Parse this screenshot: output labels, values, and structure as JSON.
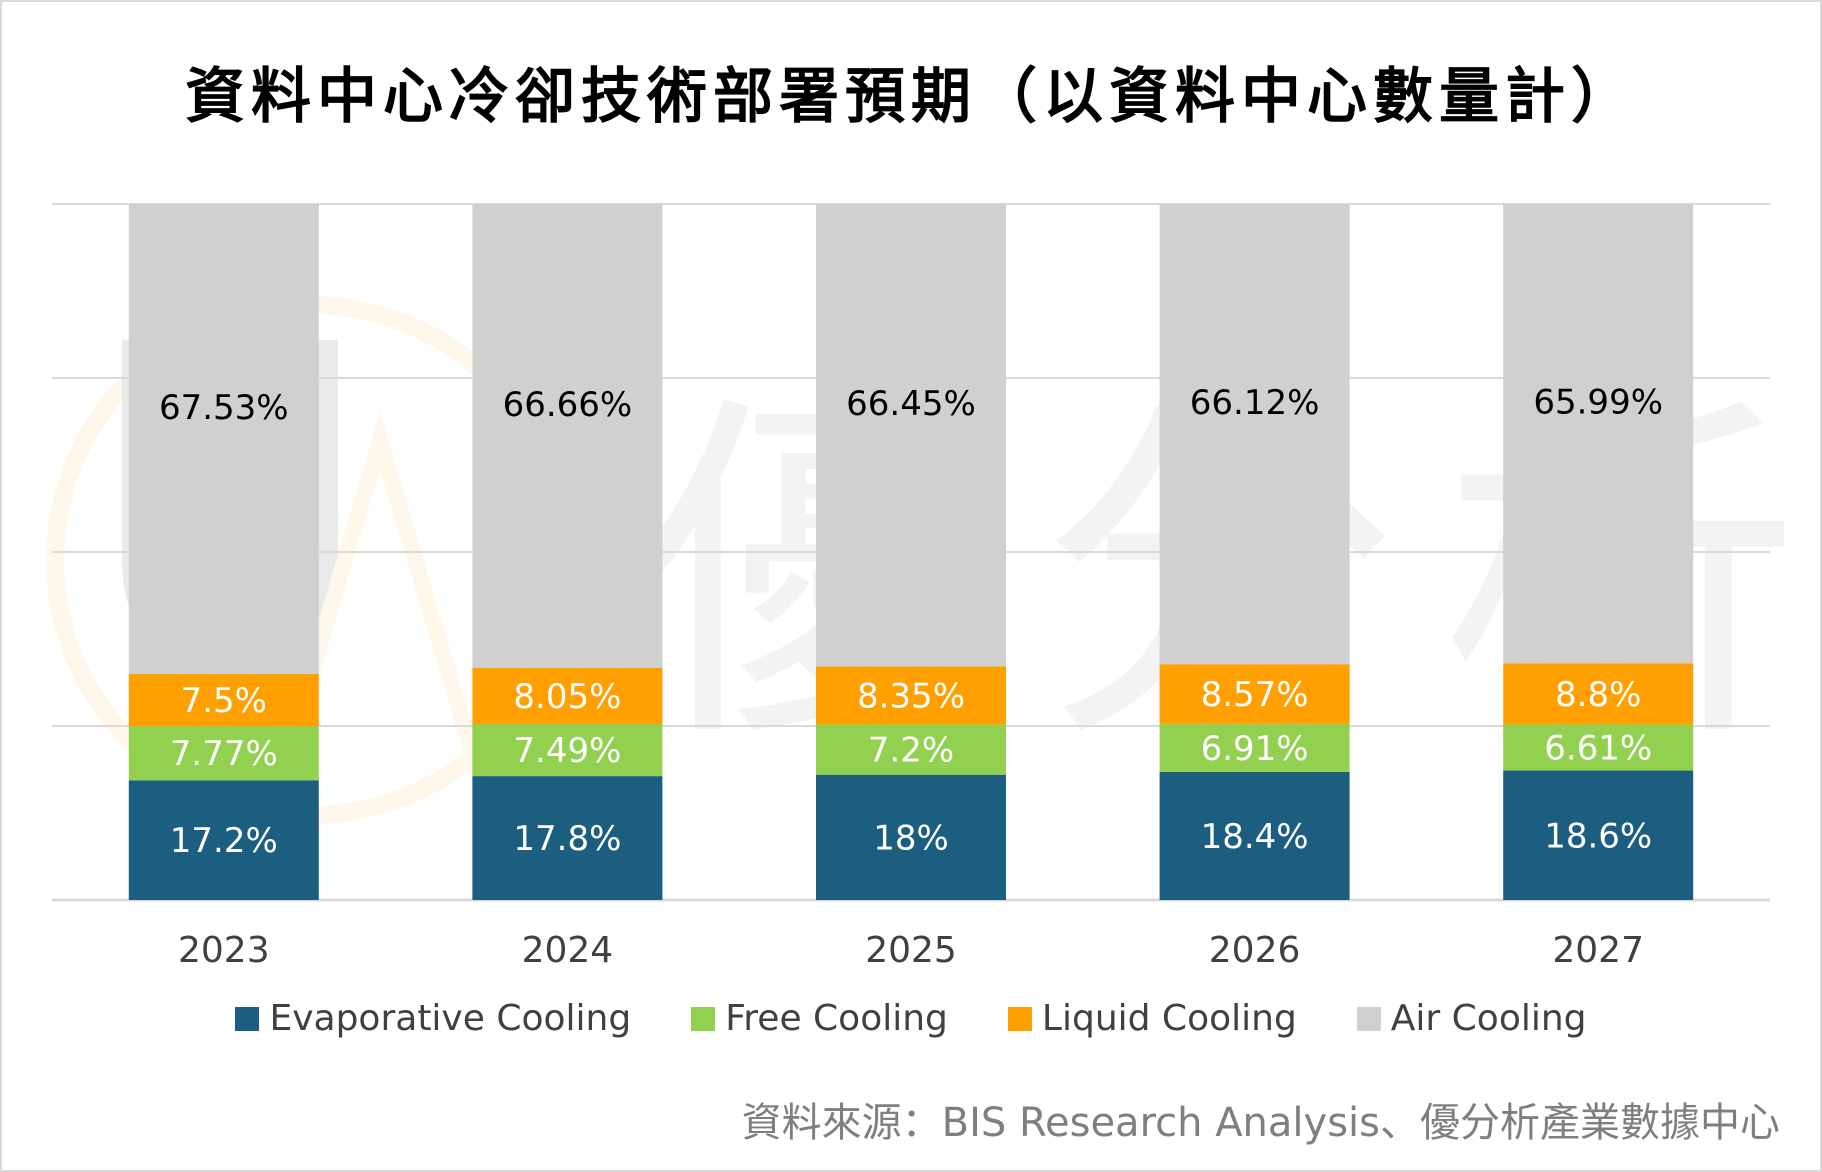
{
  "title": "資料中心冷卻技術部署預期（以資料中心數量計）",
  "source": "資料來源：BIS Research Analysis、優分析產業數據中心",
  "watermark": {
    "text": "優分析",
    "logo_text": "UA"
  },
  "colors": {
    "evaporative": "#1b5e80",
    "free": "#92d050",
    "liquid": "#ffa000",
    "air": "#d0d0d0",
    "grid": "#d9d9d9",
    "label_dark": "#000000",
    "label_light": "#ffffff"
  },
  "chart_data": {
    "type": "bar",
    "stacked": true,
    "percent": true,
    "categories": [
      "2023",
      "2024",
      "2025",
      "2026",
      "2027"
    ],
    "series": [
      {
        "name": "Evaporative Cooling",
        "values": [
          17.2,
          17.8,
          18,
          18.4,
          18.6
        ],
        "labels": [
          "17.2%",
          "17.8%",
          "18%",
          "18.4%",
          "18.6%"
        ],
        "color": "#1b5e80"
      },
      {
        "name": "Free Cooling",
        "values": [
          7.77,
          7.49,
          7.2,
          6.91,
          6.61
        ],
        "labels": [
          "7.77%",
          "7.49%",
          "7.2%",
          "6.91%",
          "6.61%"
        ],
        "color": "#92d050"
      },
      {
        "name": "Liquid Cooling",
        "values": [
          7.5,
          8.05,
          8.35,
          8.57,
          8.8
        ],
        "labels": [
          "7.5%",
          "8.05%",
          "8.35%",
          "8.57%",
          "8.8%"
        ],
        "color": "#ffa000"
      },
      {
        "name": "Air Cooling",
        "values": [
          67.53,
          66.66,
          66.45,
          66.12,
          65.99
        ],
        "labels": [
          "67.53%",
          "66.66%",
          "66.45%",
          "66.12%",
          "65.99%"
        ],
        "color": "#d0d0d0"
      }
    ],
    "ylim": [
      0,
      100
    ],
    "grid": true,
    "legend_position": "bottom"
  }
}
